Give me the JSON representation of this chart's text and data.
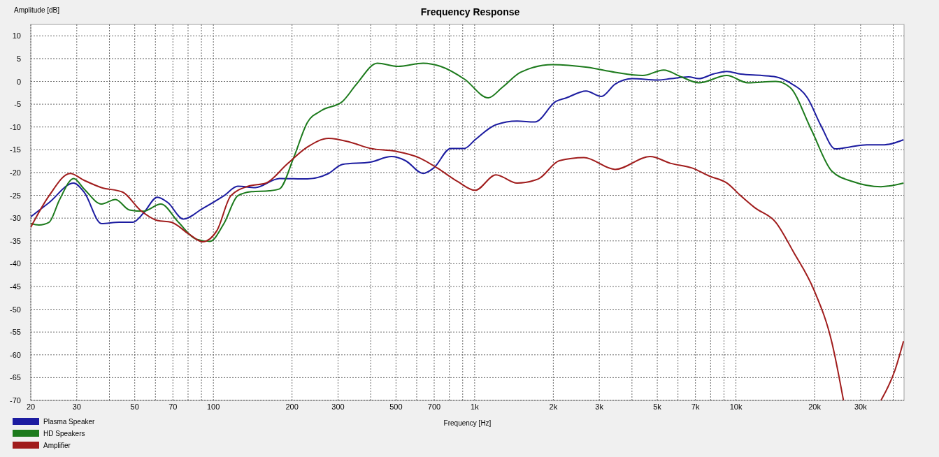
{
  "chart_data": {
    "type": "line",
    "title": "Frequency Response",
    "xlabel": "Frequency [Hz]",
    "ylabel": "Amplitude [dB]",
    "log": "x",
    "grid": true,
    "legend": "bottom left",
    "line_style": "solid",
    "marker": "none",
    "xlim": [
      20,
      44000
    ],
    "ylim": [
      -70,
      12.5
    ],
    "xticks": [
      20,
      30,
      {
        "value": 40,
        "label": null
      },
      50,
      {
        "value": 60,
        "label": null
      },
      70,
      {
        "value": 80,
        "label": null
      },
      {
        "value": 90,
        "label": null
      },
      100,
      200,
      300,
      {
        "value": 400,
        "label": null
      },
      500,
      {
        "value": 600,
        "label": null
      },
      700,
      {
        "value": 800,
        "label": null
      },
      {
        "value": 900,
        "label": null
      },
      {
        "value": 1000,
        "label": "1k"
      },
      {
        "value": 2000,
        "label": "2k"
      },
      {
        "value": 3000,
        "label": "3k"
      },
      {
        "value": 4000,
        "label": null
      },
      {
        "value": 5000,
        "label": "5k"
      },
      {
        "value": 6000,
        "label": null
      },
      {
        "value": 7000,
        "label": "7k"
      },
      {
        "value": 8000,
        "label": null
      },
      {
        "value": 9000,
        "label": null
      },
      {
        "value": 10000,
        "label": "10k"
      },
      {
        "value": 20000,
        "label": "20k"
      },
      {
        "value": 30000,
        "label": "30k"
      },
      {
        "value": 40000,
        "label": null
      }
    ],
    "yticks": [
      -70,
      -65,
      -60,
      -55,
      -50,
      -45,
      -40,
      -35,
      -30,
      -25,
      -20,
      -15,
      -10,
      -5,
      0,
      5,
      10
    ],
    "series": [
      {
        "name": "Plasma Speaker",
        "color": "#1c1ca0",
        "x": [
          20,
          23.5,
          29.2,
          32,
          37.3,
          43.6,
          49.2,
          54,
          61,
          67,
          76.7,
          91,
          109.7,
          124,
          144.7,
          179,
          229,
          276,
          312,
          399,
          480,
          544,
          635,
          697,
          810,
          914,
          1004,
          1206,
          1454,
          1700,
          2045,
          2245,
          2670,
          3052,
          3450,
          4020,
          4990,
          5640,
          6580,
          7220,
          8170,
          9230,
          10440,
          12570,
          14200,
          16100,
          18780,
          21200,
          24000,
          27200,
          31700,
          37000,
          43800
        ],
        "values": [
          -29.7,
          -26.6,
          -22.3,
          -24.3,
          -31.2,
          -30.9,
          -30.9,
          -28.9,
          -25.4,
          -26.6,
          -30.2,
          -27.9,
          -25.1,
          -23,
          -23.3,
          -21.3,
          -21.4,
          -20.2,
          -18.2,
          -17.7,
          -16.5,
          -17.4,
          -20.2,
          -19,
          -14.7,
          -14.7,
          -12.8,
          -9.5,
          -8.7,
          -8.9,
          -4.4,
          -3.6,
          -2.1,
          -3.3,
          -0.6,
          0.6,
          0.3,
          0.6,
          1,
          0.6,
          1.6,
          2.2,
          1.6,
          1.3,
          1,
          -0.3,
          -3.6,
          -9.8,
          -14.8,
          -14.4,
          -13.9,
          -13.9,
          -12.8
        ]
      },
      {
        "name": "HD Speakers",
        "color": "#1c7a1c",
        "x": [
          20,
          21.5,
          23.5,
          25.8,
          29.2,
          32,
          37.3,
          42.2,
          47.7,
          54,
          62.9,
          73.5,
          85.7,
          97,
          109.7,
          124,
          140,
          163.6,
          179,
          203,
          229,
          259,
          312,
          353,
          424,
          509,
          635,
          741,
          914,
          1128,
          1276,
          1500,
          1984,
          2700,
          3450,
          4400,
          5290,
          6180,
          7220,
          9230,
          11100,
          14200,
          16100,
          19400,
          23300,
          28100,
          35900,
          43800
        ],
        "values": [
          -31.2,
          -31.5,
          -30.9,
          -25.9,
          -21.3,
          -23.6,
          -26.9,
          -25.9,
          -28.2,
          -28.5,
          -26.9,
          -30.9,
          -34.6,
          -35.1,
          -31.2,
          -25.1,
          -24.2,
          -24,
          -23.6,
          -16.7,
          -9,
          -6.4,
          -4.4,
          -0.6,
          4,
          3.3,
          4,
          3.3,
          0.5,
          -3.6,
          -1.3,
          2,
          3.7,
          3.1,
          2,
          1.3,
          2.5,
          1,
          -0.3,
          1.3,
          -0.3,
          0,
          -1.3,
          -10.5,
          -19.7,
          -22,
          -23.1,
          -22.3
        ]
      },
      {
        "name": "Amplifier",
        "color": "#a01c1c",
        "x": [
          20,
          23.5,
          28.3,
          32,
          37.3,
          45,
          52.4,
          61,
          69,
          80.6,
          91,
          103,
          116.6,
          136,
          159,
          191,
          229,
          276,
          332,
          399,
          495,
          616,
          719,
          862,
          1004,
          1206,
          1454,
          1752,
          2108,
          2620,
          3450,
          4690,
          5640,
          6790,
          7930,
          9230,
          10440,
          11800,
          14200,
          16600,
          19900,
          23300,
          25800,
          30000,
          35900,
          40600,
          43800
        ],
        "values": [
          -32,
          -25.1,
          -20.2,
          -21.7,
          -23.3,
          -24.3,
          -28.2,
          -30.5,
          -30.9,
          -33.5,
          -35.2,
          -32.8,
          -25.1,
          -23,
          -22.3,
          -18.2,
          -14.4,
          -12.5,
          -13.3,
          -14.7,
          -15.3,
          -16.8,
          -19,
          -22,
          -23.9,
          -20.5,
          -22.3,
          -21.4,
          -17.4,
          -16.7,
          -19.3,
          -16.5,
          -18,
          -19,
          -20.8,
          -22.3,
          -25.1,
          -27.7,
          -30.9,
          -37.4,
          -45.8,
          -57.3,
          -70,
          null,
          -70,
          -63.4,
          -57
        ]
      }
    ]
  }
}
